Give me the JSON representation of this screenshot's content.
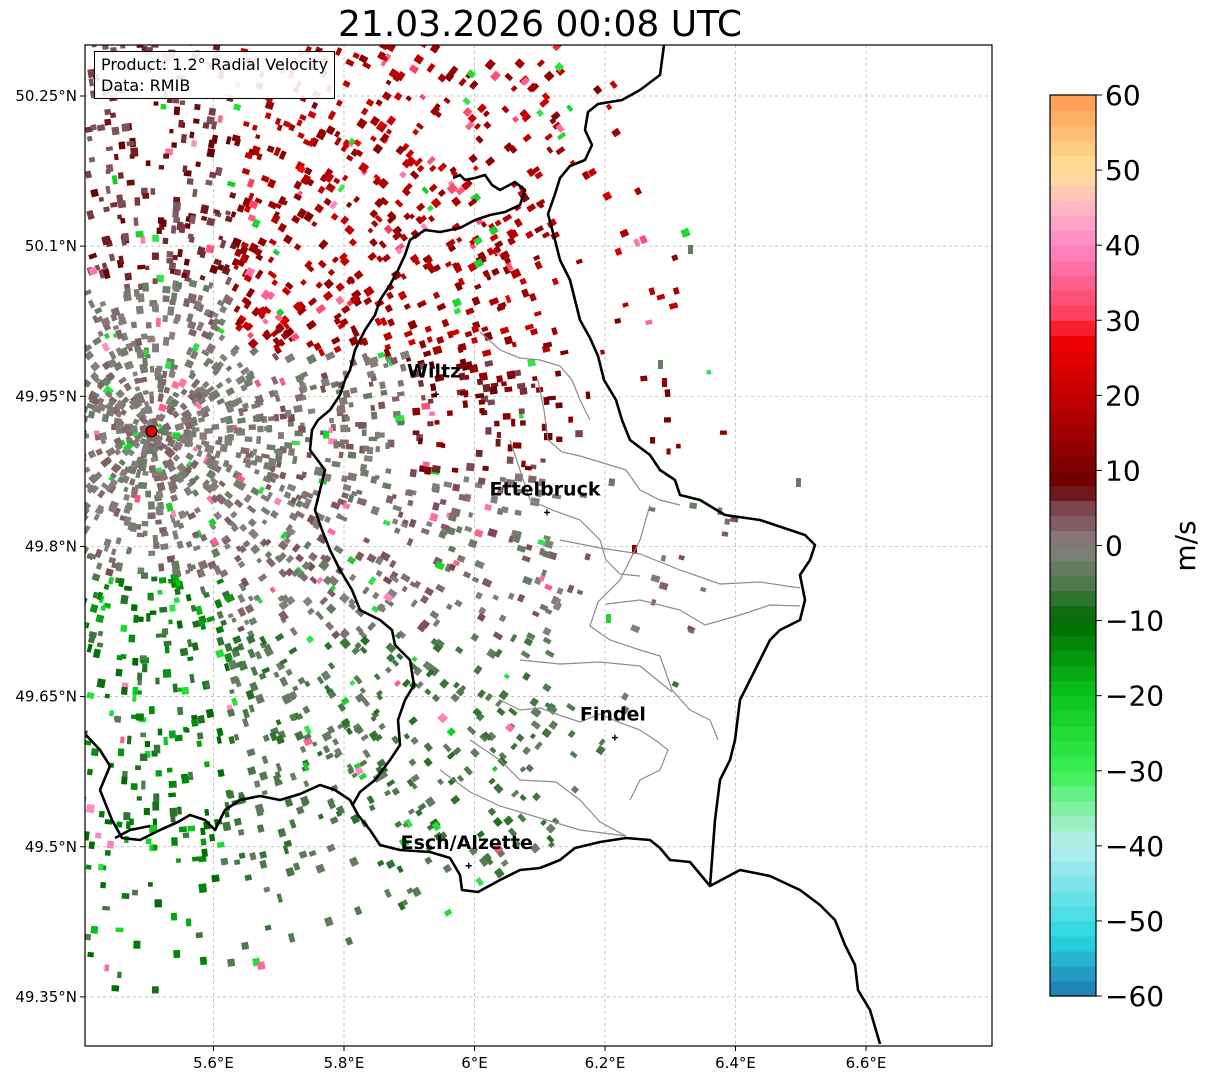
{
  "title": "21.03.2026 00:08 UTC",
  "info": {
    "product": "Product: 1.2° Radial Velocity",
    "source": "Data: RMIB"
  },
  "map": {
    "lon_range": [
      5.4,
      6.8
    ],
    "lat_range": [
      49.3,
      50.3
    ],
    "lon_ticks": [
      {
        "value": 5.6,
        "label": "5.6°E"
      },
      {
        "value": 5.8,
        "label": "5.8°E"
      },
      {
        "value": 6.0,
        "label": "6°E"
      },
      {
        "value": 6.2,
        "label": "6.2°E"
      },
      {
        "value": 6.4,
        "label": "6.4°E"
      },
      {
        "value": 6.6,
        "label": "6.6°E"
      }
    ],
    "lat_ticks": [
      {
        "value": 50.25,
        "label": "50.25°N"
      },
      {
        "value": 50.1,
        "label": "50.1°N"
      },
      {
        "value": 49.95,
        "label": "49.95°N"
      },
      {
        "value": 49.8,
        "label": "49.8°N"
      },
      {
        "value": 49.65,
        "label": "49.65°N"
      },
      {
        "value": 49.5,
        "label": "49.5°N"
      },
      {
        "value": 49.35,
        "label": "49.35°N"
      }
    ],
    "radar_site": {
      "lon": 5.505,
      "lat": 49.915
    },
    "cities": [
      {
        "name": "Wiltz",
        "lon": 5.935,
        "lat": 49.97
      },
      {
        "name": "Ettelbruck",
        "lon": 6.105,
        "lat": 49.852
      },
      {
        "name": "Findel",
        "lon": 6.209,
        "lat": 49.627
      },
      {
        "name": "Esch/Alzette",
        "lon": 5.985,
        "lat": 49.499
      }
    ]
  },
  "colorbar": {
    "label": "m/s",
    "min": -60,
    "max": 60,
    "ticks": [
      {
        "value": 60,
        "label": "60"
      },
      {
        "value": 50,
        "label": "50"
      },
      {
        "value": 40,
        "label": "40"
      },
      {
        "value": 30,
        "label": "30"
      },
      {
        "value": 20,
        "label": "20"
      },
      {
        "value": 10,
        "label": "10"
      },
      {
        "value": 0,
        "label": "0"
      },
      {
        "value": -10,
        "label": "−10"
      },
      {
        "value": -20,
        "label": "−20"
      },
      {
        "value": -30,
        "label": "−30"
      },
      {
        "value": -40,
        "label": "−40"
      },
      {
        "value": -50,
        "label": "−50"
      },
      {
        "value": -60,
        "label": "−60"
      }
    ],
    "color_stops": [
      {
        "v": -60,
        "c": "#1f77b4"
      },
      {
        "v": -52,
        "c": "#2ad8e0"
      },
      {
        "v": -40,
        "c": "#b8eef2"
      },
      {
        "v": -36,
        "c": "#8ff0b4"
      },
      {
        "v": -30,
        "c": "#39f052"
      },
      {
        "v": -20,
        "c": "#0ac51c"
      },
      {
        "v": -10,
        "c": "#006a00"
      },
      {
        "v": -5,
        "c": "#4d7a4d"
      },
      {
        "v": 0,
        "c": "#888080"
      },
      {
        "v": 5,
        "c": "#7c4550"
      },
      {
        "v": 8,
        "c": "#6a0000"
      },
      {
        "v": 20,
        "c": "#c40000"
      },
      {
        "v": 28,
        "c": "#f50000"
      },
      {
        "v": 30,
        "c": "#ff3a58"
      },
      {
        "v": 40,
        "c": "#ff88c4"
      },
      {
        "v": 45,
        "c": "#ffb7c4"
      },
      {
        "v": 50,
        "c": "#ffe19a"
      },
      {
        "v": 60,
        "c": "#ff9a4e"
      }
    ]
  }
}
